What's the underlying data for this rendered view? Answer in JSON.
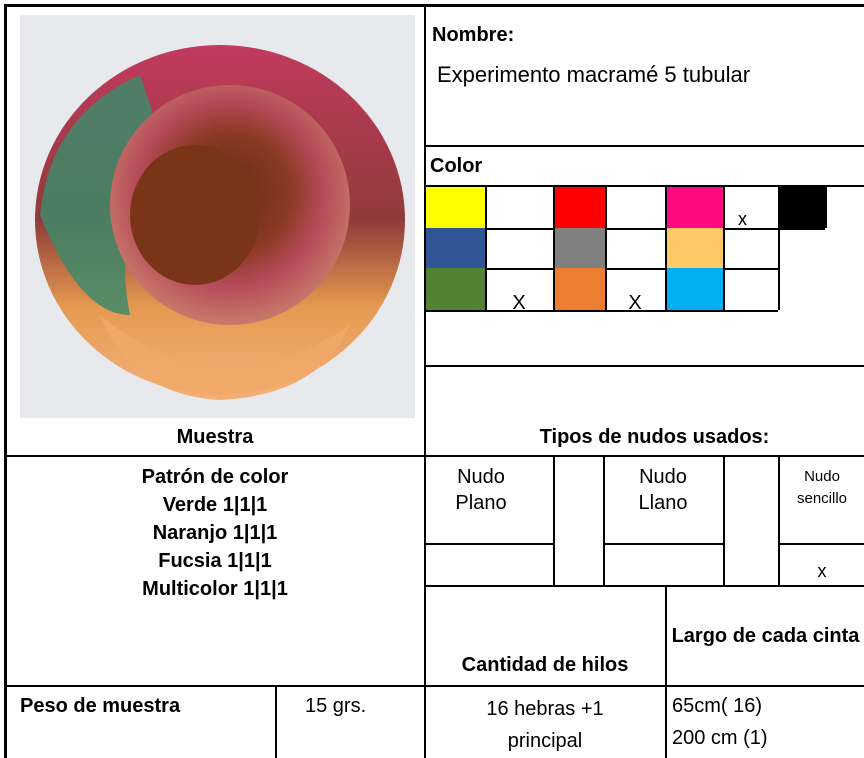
{
  "sample": {
    "caption": "Muestra",
    "pattern": {
      "title": "Patrón de color",
      "lines": [
        "Verde 1|1|1",
        "Naranjo 1|1|1",
        "Fucsia 1|1|1",
        "Multicolor 1|1|1"
      ]
    },
    "weight": {
      "label": "Peso de muestra",
      "value": "15 grs."
    }
  },
  "name": {
    "label": "Nombre:",
    "value": "Experimento macramé 5 tubular"
  },
  "color": {
    "label": "Color",
    "marks": {
      "pink": "x",
      "green": "X",
      "orange": "X"
    }
  },
  "knots": {
    "title": "Tipos de nudos usados:",
    "items": [
      {
        "name": "Nudo Plano"
      },
      {
        "name": "Nudo Llano"
      },
      {
        "name": "Nudo sencillo",
        "mark": "x"
      }
    ]
  },
  "threads": {
    "count_label": "Cantidad de hilos",
    "count_value": "16 hebras +1 principal",
    "length_label": "Largo de cada cinta",
    "length_value": [
      "65cm( 16)",
      "200 cm (1)"
    ]
  }
}
